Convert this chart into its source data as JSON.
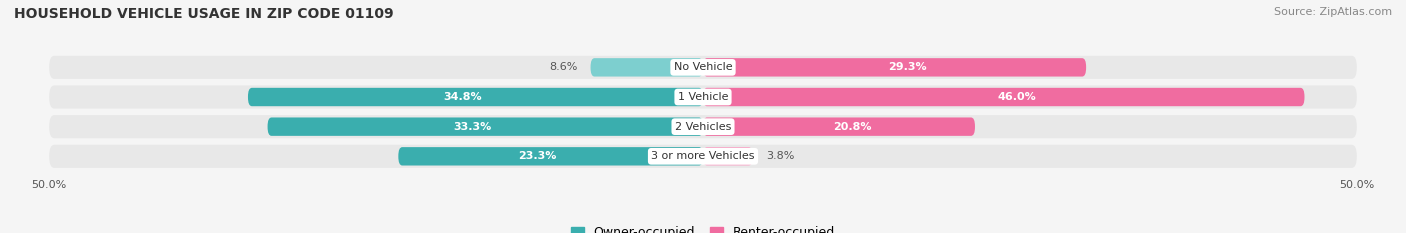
{
  "title": "HOUSEHOLD VEHICLE USAGE IN ZIP CODE 01109",
  "source": "Source: ZipAtlas.com",
  "categories": [
    "No Vehicle",
    "1 Vehicle",
    "2 Vehicles",
    "3 or more Vehicles"
  ],
  "owner_values": [
    8.6,
    34.8,
    33.3,
    23.3
  ],
  "renter_values": [
    29.3,
    46.0,
    20.8,
    3.8
  ],
  "owner_color_dark": "#3AAEAE",
  "owner_color_light": "#7DCFCF",
  "renter_color_dark": "#F06CA0",
  "renter_color_light": "#F9A8C9",
  "bg_color": "#f5f5f5",
  "bar_bg_color": "#e8e8e8",
  "title_fontsize": 10,
  "source_fontsize": 8,
  "label_fontsize": 8,
  "pct_fontsize": 8,
  "legend_fontsize": 9,
  "xlim_left": -50,
  "xlim_right": 50,
  "xtick_left": "50.0%",
  "xtick_right": "50.0%"
}
